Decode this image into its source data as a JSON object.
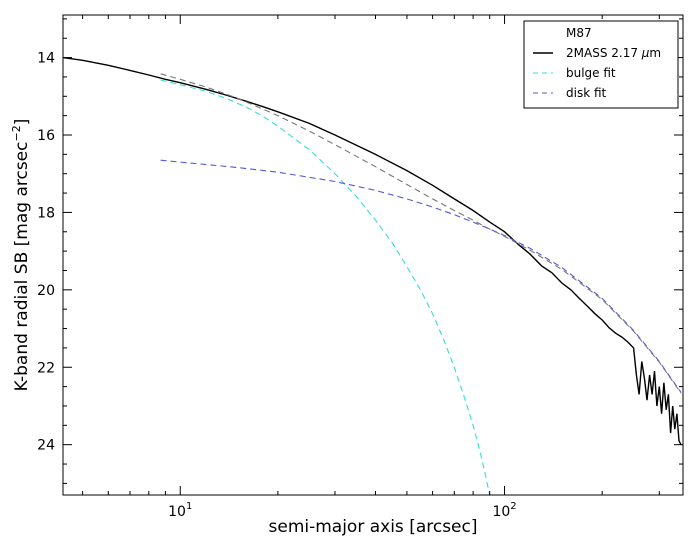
{
  "chart_data": {
    "type": "line",
    "title": "",
    "xlabel": "semi-major axis [arcsec]",
    "ylabel": "K-band radial SB [mag arcsec",
    "ylabel_sup": "−2",
    "ylabel_close": "]",
    "xscale": "log",
    "xlim": [
      4.35,
      355
    ],
    "ylim": [
      25.3,
      12.9
    ],
    "y_inverted": true,
    "grid": false,
    "legend_position": "top-right",
    "legend_title": "M87",
    "x_ticks": [
      {
        "value": 10,
        "base": "10",
        "exp": "1"
      },
      {
        "value": 100,
        "base": "10",
        "exp": "2"
      }
    ],
    "y_ticks": [
      14,
      16,
      18,
      20,
      22,
      24
    ],
    "y_tick_labels": [
      "14",
      "16",
      "18",
      "20",
      "22",
      "24"
    ],
    "series": [
      {
        "name": "2MASS 2.17 μm",
        "legend_parts": [
          "2MASS 2.17 ",
          "μ",
          "m"
        ],
        "color": "#000000",
        "style": "solid",
        "x": [
          4.35,
          5,
          6,
          7,
          8,
          9,
          10,
          12,
          14,
          16,
          18,
          20,
          25,
          30,
          40,
          50,
          60,
          70,
          80,
          90,
          100,
          110,
          120,
          130,
          140,
          150,
          160,
          170,
          180,
          190,
          200,
          210,
          220,
          230,
          240,
          250,
          255,
          260,
          265,
          270,
          275,
          280,
          285,
          290,
          295,
          300,
          305,
          310,
          315,
          320,
          325,
          330,
          335,
          340,
          345,
          350
        ],
        "y": [
          14.0,
          14.07,
          14.2,
          14.33,
          14.45,
          14.56,
          14.65,
          14.82,
          14.98,
          15.13,
          15.27,
          15.4,
          15.7,
          16.0,
          16.5,
          16.92,
          17.3,
          17.65,
          17.95,
          18.25,
          18.5,
          18.82,
          19.08,
          19.38,
          19.56,
          19.82,
          20.0,
          20.22,
          20.42,
          20.62,
          20.78,
          20.98,
          21.12,
          21.22,
          21.35,
          21.5,
          22.2,
          22.7,
          21.85,
          22.3,
          22.85,
          22.2,
          22.7,
          22.1,
          23.0,
          22.5,
          23.2,
          22.4,
          23.1,
          22.7,
          23.7,
          23.0,
          23.6,
          23.2,
          23.9,
          24.0
        ]
      },
      {
        "name": "bulge fit",
        "color": "#33dddd",
        "style": "dashed",
        "x": [
          8.7,
          10,
          12,
          14,
          16,
          18,
          20,
          25,
          30,
          35,
          40,
          45,
          50,
          55,
          60,
          65,
          70,
          75,
          80,
          85,
          90
        ],
        "y": [
          14.58,
          14.7,
          14.87,
          15.07,
          15.28,
          15.52,
          15.77,
          16.38,
          17.0,
          17.6,
          18.2,
          18.78,
          19.4,
          20.0,
          20.62,
          21.3,
          22.0,
          22.75,
          23.5,
          24.35,
          25.3
        ]
      },
      {
        "name": "disk fit",
        "color": "#5555dd",
        "style": "dashed",
        "x": [
          8.7,
          10,
          15,
          20,
          30,
          40,
          50,
          60,
          70,
          80,
          90,
          100,
          120,
          150,
          200,
          250,
          300,
          350
        ],
        "y": [
          16.65,
          16.7,
          16.84,
          16.96,
          17.2,
          17.43,
          17.65,
          17.86,
          18.06,
          18.25,
          18.43,
          18.6,
          18.93,
          19.42,
          20.22,
          21.05,
          21.85,
          22.65
        ]
      },
      {
        "name": "",
        "color": "#777777",
        "style": "dashed",
        "in_legend": false,
        "x": [
          8.7,
          10,
          12,
          15,
          20,
          25,
          30,
          40,
          50,
          60,
          70,
          80,
          90,
          100,
          120,
          150,
          200,
          250,
          300,
          350
        ],
        "y": [
          14.42,
          14.56,
          14.76,
          15.05,
          15.5,
          15.9,
          16.25,
          16.82,
          17.28,
          17.65,
          17.95,
          18.2,
          18.43,
          18.62,
          18.98,
          19.47,
          20.25,
          21.07,
          21.87,
          22.67
        ]
      }
    ]
  }
}
